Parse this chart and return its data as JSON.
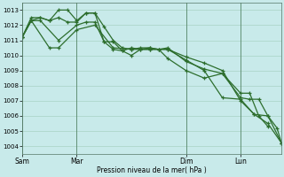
{
  "background_color": "#c8eaea",
  "grid_color": "#a0ccbb",
  "line_color": "#2d6e2d",
  "xlabel": "Pression niveau de la mer( hPa )",
  "ylim": [
    1003.5,
    1013.5
  ],
  "yticks": [
    1004,
    1005,
    1006,
    1007,
    1008,
    1009,
    1010,
    1011,
    1012,
    1013
  ],
  "xtick_labels": [
    "Sam",
    "Mar",
    "Dim",
    "Lun"
  ],
  "xtick_positions": [
    0,
    12,
    36,
    48
  ],
  "vline_positions": [
    0,
    12,
    36,
    48
  ],
  "xlim": [
    0,
    57
  ],
  "series1_x": [
    0,
    2,
    4,
    6,
    8,
    10,
    12,
    14,
    16,
    18,
    20,
    22,
    24,
    26,
    28,
    30,
    32,
    36,
    40,
    44,
    48,
    50,
    52,
    54
  ],
  "series1_y": [
    1011.2,
    1012.3,
    1012.5,
    1012.3,
    1012.5,
    1012.2,
    1012.2,
    1012.8,
    1012.8,
    1010.9,
    1010.4,
    1010.3,
    1010.5,
    1010.4,
    1010.5,
    1010.4,
    1010.5,
    1009.6,
    1009.1,
    1008.8,
    1007.5,
    1007.5,
    1006.0,
    1005.3
  ],
  "series2_x": [
    0,
    2,
    4,
    6,
    8,
    10,
    12,
    14,
    16,
    18,
    20,
    22,
    24,
    26,
    28,
    30,
    32,
    36,
    40,
    44,
    48,
    51,
    54,
    57
  ],
  "series2_y": [
    1011.2,
    1012.5,
    1012.5,
    1012.3,
    1013.0,
    1013.0,
    1012.3,
    1012.8,
    1012.8,
    1011.9,
    1011.0,
    1010.5,
    1010.4,
    1010.5,
    1010.5,
    1010.4,
    1010.4,
    1009.9,
    1009.5,
    1009.0,
    1007.0,
    1006.1,
    1006.0,
    1004.2
  ],
  "series3_x": [
    0,
    2,
    4,
    8,
    12,
    14,
    16,
    18,
    20,
    22,
    24,
    26,
    28,
    30,
    32,
    36,
    40,
    44,
    48,
    50,
    52,
    54,
    56,
    57
  ],
  "series3_y": [
    1011.2,
    1012.3,
    1012.3,
    1011.0,
    1012.0,
    1012.2,
    1012.2,
    1010.9,
    1010.9,
    1010.3,
    1010.0,
    1010.4,
    1010.4,
    1010.4,
    1009.8,
    1009.0,
    1008.5,
    1008.8,
    1007.2,
    1007.1,
    1007.1,
    1006.0,
    1005.2,
    1004.2
  ],
  "series4_x": [
    0,
    2,
    6,
    8,
    12,
    16,
    20,
    24,
    28,
    32,
    36,
    40,
    44,
    48,
    51,
    54,
    57
  ],
  "series4_y": [
    1011.2,
    1012.3,
    1010.5,
    1010.5,
    1011.7,
    1012.0,
    1010.5,
    1010.4,
    1010.4,
    1010.4,
    1009.7,
    1009.0,
    1007.2,
    1007.1,
    1006.1,
    1005.5,
    1004.2
  ]
}
